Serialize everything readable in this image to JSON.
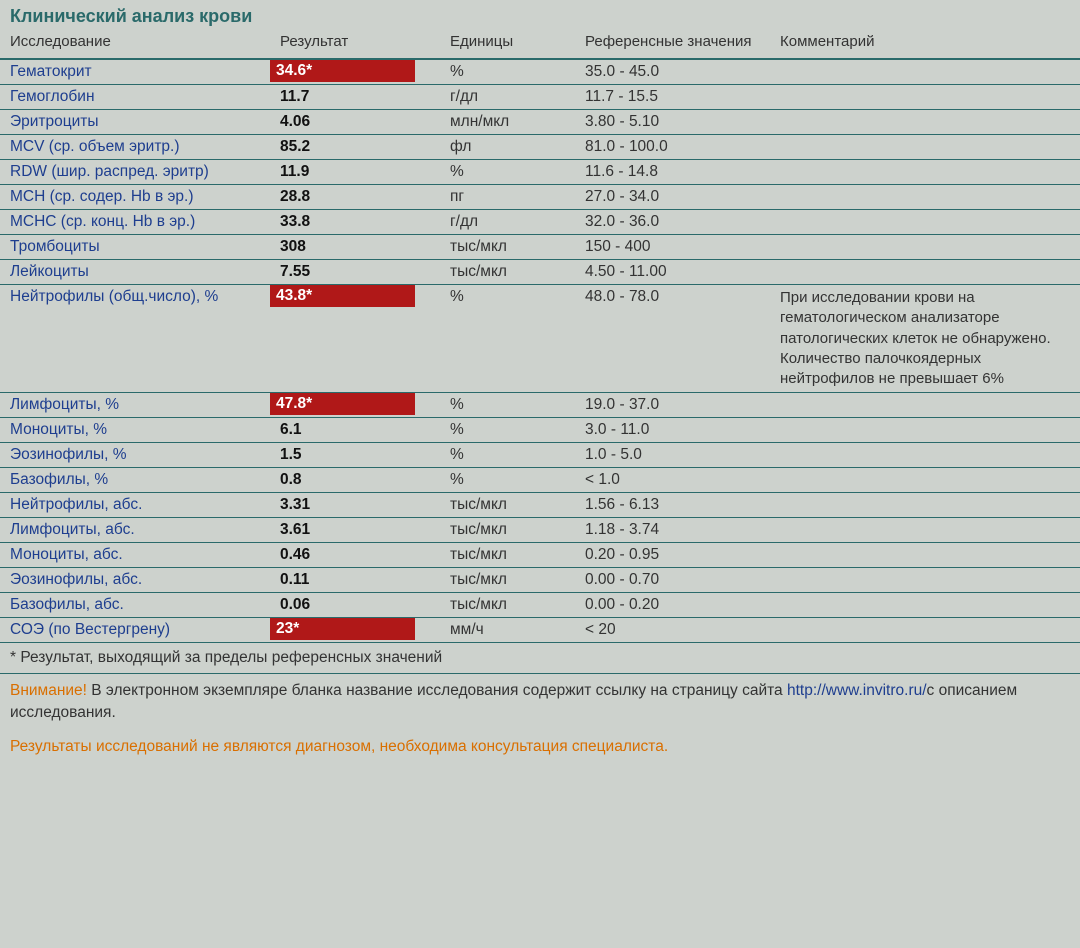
{
  "title": "Клинический анализ крови",
  "headers": {
    "name": "Исследование",
    "result": "Результат",
    "units": "Единицы",
    "ref": "Референсные значения",
    "comment": "Комментарий"
  },
  "rows": [
    {
      "name": "Гематокрит",
      "result": "34.6*",
      "abnormal": true,
      "units": "%",
      "ref": "35.0 - 45.0",
      "comment": ""
    },
    {
      "name": "Гемоглобин",
      "result": "11.7",
      "abnormal": false,
      "units": "г/дл",
      "ref": "11.7 - 15.5",
      "comment": ""
    },
    {
      "name": "Эритроциты",
      "result": "4.06",
      "abnormal": false,
      "units": "млн/мкл",
      "ref": "3.80 - 5.10",
      "comment": ""
    },
    {
      "name": "MCV (ср. объем эритр.)",
      "result": "85.2",
      "abnormal": false,
      "units": "фл",
      "ref": "81.0 - 100.0",
      "comment": ""
    },
    {
      "name": "RDW (шир. распред. эритр)",
      "result": "11.9",
      "abnormal": false,
      "units": "%",
      "ref": "11.6 - 14.8",
      "comment": ""
    },
    {
      "name": "MCH (ср. содер. Hb в эр.)",
      "result": "28.8",
      "abnormal": false,
      "units": "пг",
      "ref": "27.0 - 34.0",
      "comment": ""
    },
    {
      "name": "MCHC (ср. конц. Hb в эр.)",
      "result": "33.8",
      "abnormal": false,
      "units": "г/дл",
      "ref": "32.0 - 36.0",
      "comment": ""
    },
    {
      "name": "Тромбоциты",
      "result": "308",
      "abnormal": false,
      "units": "тыс/мкл",
      "ref": "150 - 400",
      "comment": ""
    },
    {
      "name": "Лейкоциты",
      "result": "7.55",
      "abnormal": false,
      "units": "тыс/мкл",
      "ref": "4.50 - 11.00",
      "comment": ""
    },
    {
      "name": "Нейтрофилы (общ.число), %",
      "result": "43.8*",
      "abnormal": true,
      "units": "%",
      "ref": "48.0 - 78.0",
      "comment": "При исследовании крови на гематологическом анализаторе патологических клеток не обнаружено. Количество палочкоядерных нейтрофилов не превышает 6%"
    },
    {
      "name": "Лимфоциты, %",
      "result": "47.8*",
      "abnormal": true,
      "units": "%",
      "ref": "19.0 - 37.0",
      "comment": ""
    },
    {
      "name": "Моноциты, %",
      "result": "6.1",
      "abnormal": false,
      "units": "%",
      "ref": "3.0 - 11.0",
      "comment": ""
    },
    {
      "name": "Эозинофилы, %",
      "result": "1.5",
      "abnormal": false,
      "units": "%",
      "ref": "1.0 - 5.0",
      "comment": ""
    },
    {
      "name": "Базофилы, %",
      "result": "0.8",
      "abnormal": false,
      "units": "%",
      "ref": "< 1.0",
      "comment": ""
    },
    {
      "name": "Нейтрофилы, абс.",
      "result": "3.31",
      "abnormal": false,
      "units": "тыс/мкл",
      "ref": "1.56 - 6.13",
      "comment": ""
    },
    {
      "name": "Лимфоциты, абс.",
      "result": "3.61",
      "abnormal": false,
      "units": "тыс/мкл",
      "ref": "1.18 - 3.74",
      "comment": ""
    },
    {
      "name": "Моноциты, абс.",
      "result": "0.46",
      "abnormal": false,
      "units": "тыс/мкл",
      "ref": "0.20 - 0.95",
      "comment": ""
    },
    {
      "name": "Эозинофилы, абс.",
      "result": "0.11",
      "abnormal": false,
      "units": "тыс/мкл",
      "ref": "0.00 - 0.70",
      "comment": ""
    },
    {
      "name": "Базофилы, абс.",
      "result": "0.06",
      "abnormal": false,
      "units": "тыс/мкл",
      "ref": "0.00 - 0.20",
      "comment": ""
    },
    {
      "name": "СОЭ (по Вестергрену)",
      "result": "23*",
      "abnormal": true,
      "units": "мм/ч",
      "ref": "< 20",
      "comment": ""
    }
  ],
  "footnote": "* Результат, выходящий за пределы референсных значений",
  "attention_label": "Внимание!",
  "attention_text_1": " В электронном экземпляре бланка название исследования содержит ссылку на страницу сайта ",
  "attention_link": "http://www.invitro.ru/",
  "attention_text_2": "с описанием исследования.",
  "disclaimer": "Результаты исследований не являются диагнозом, необходима консультация специалиста.",
  "colors": {
    "background": "#cdd2cd",
    "heading": "#2a6a6a",
    "border": "#2a6a6a",
    "link": "#1e3e8f",
    "abnormal_bg": "#b01818",
    "abnormal_fg": "#ffffff",
    "warning": "#d96f00"
  }
}
